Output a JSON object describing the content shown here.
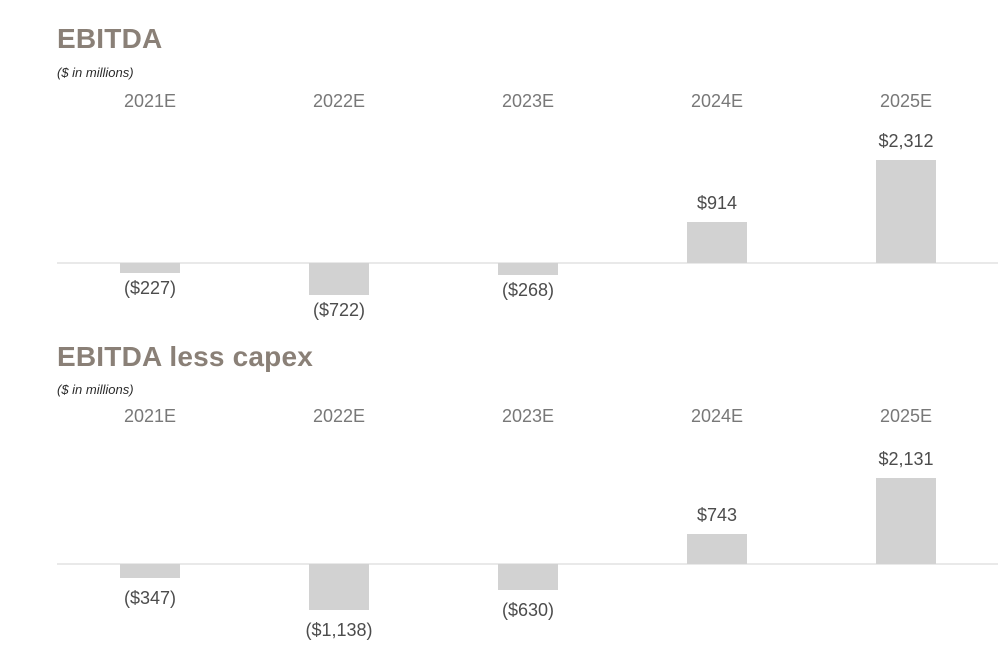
{
  "page": {
    "background": "#ffffff"
  },
  "colors": {
    "title": "#8a8077",
    "subtitle": "#2b2b2b",
    "year_label": "#787878",
    "value_label": "#4c4c4c",
    "bar": "#d2d2d2",
    "baseline": "#e9e9e9"
  },
  "chart_data": [
    {
      "type": "bar",
      "title": "EBITDA",
      "subtitle": "($ in millions)",
      "categories": [
        "2021E",
        "2022E",
        "2023E",
        "2024E",
        "2025E"
      ],
      "values": [
        -227,
        -722,
        -268,
        914,
        2312
      ],
      "value_labels": [
        "($227)",
        "($722)",
        "($268)",
        "$914",
        "$2,312"
      ],
      "unit": "$ in millions",
      "axis": {
        "zero_line": true,
        "gridlines": false,
        "y_axis_labels": false
      },
      "legend": "none"
    },
    {
      "type": "bar",
      "title": "EBITDA less capex",
      "subtitle": "($ in millions)",
      "categories": [
        "2021E",
        "2022E",
        "2023E",
        "2024E",
        "2025E"
      ],
      "values": [
        -347,
        -1138,
        -630,
        743,
        2131
      ],
      "value_labels": [
        "($347)",
        "($1,138)",
        "($630)",
        "$743",
        "$2,131"
      ],
      "unit": "$ in millions",
      "axis": {
        "zero_line": true,
        "gridlines": false,
        "y_axis_labels": false
      },
      "legend": "none"
    }
  ]
}
